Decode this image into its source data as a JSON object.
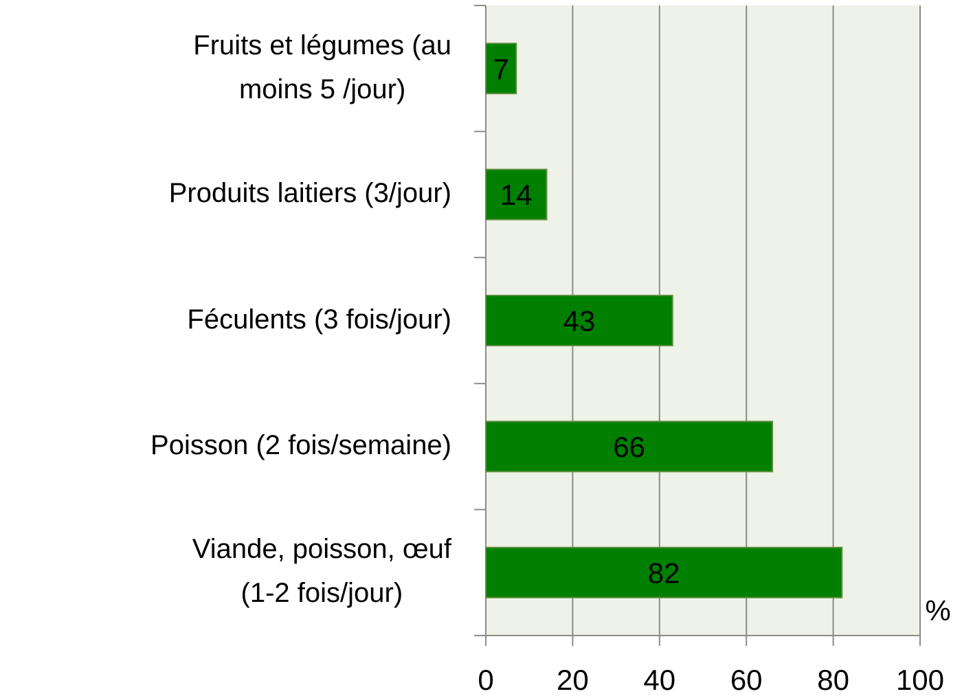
{
  "chart_data": {
    "type": "bar",
    "orientation": "horizontal",
    "categories": [
      "Fruits et légumes (au\nmoins 5 /jour)",
      "Produits laitiers (3/jour)",
      "Féculents (3 fois/jour)",
      "Poisson (2 fois/semaine)",
      "Viande, poisson, œuf\n(1-2 fois/jour)"
    ],
    "values": [
      7,
      14,
      43,
      66,
      82
    ],
    "color": "#007f00",
    "xlim": [
      0,
      100
    ],
    "xticks": [
      0,
      20,
      40,
      60,
      80,
      100
    ],
    "x_label": "%",
    "grid": true
  }
}
